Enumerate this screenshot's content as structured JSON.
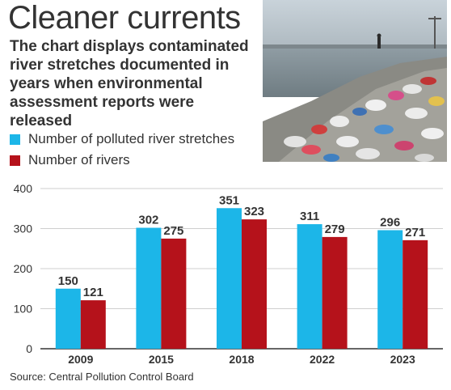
{
  "header": {
    "title": "Cleaner currents",
    "subtitle": "The chart displays contaminated river stretches documented in years when environmental assessment reports were released"
  },
  "legend": {
    "items": [
      {
        "label": "Number of polluted river stretches",
        "color": "#1cb6e8"
      },
      {
        "label": "Number of rivers",
        "color": "#b5121b"
      }
    ]
  },
  "photo": {
    "icon": "river-pollution-photo"
  },
  "source": "Source: Central Pollution Control Board",
  "chart_data": {
    "type": "bar",
    "categories": [
      "2009",
      "2015",
      "2018",
      "2022",
      "2023"
    ],
    "series": [
      {
        "name": "Number of polluted river stretches",
        "values": [
          150,
          302,
          351,
          311,
          296
        ],
        "color": "#1cb6e8"
      },
      {
        "name": "Number of rivers",
        "values": [
          121,
          275,
          323,
          279,
          271
        ],
        "color": "#b5121b"
      }
    ],
    "yticks": [
      0,
      100,
      200,
      300,
      400
    ],
    "ylim": [
      0,
      400
    ],
    "grid": true,
    "title": "",
    "xlabel": "",
    "ylabel": ""
  }
}
